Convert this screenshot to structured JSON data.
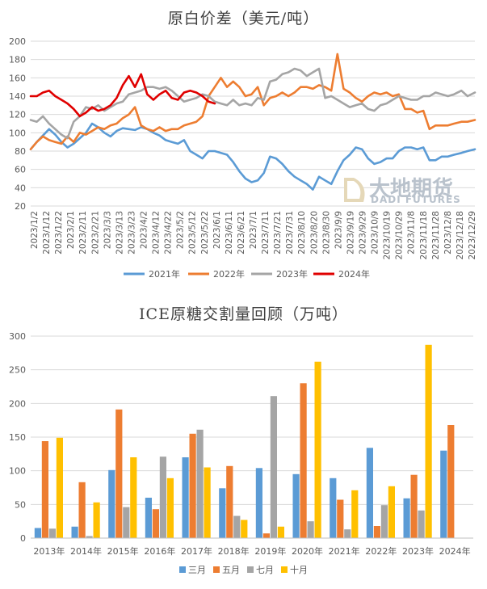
{
  "chart_data": [
    {
      "type": "line",
      "title": "原白价差（美元/吨）",
      "xlabel": "",
      "ylabel": "",
      "ylim": [
        20,
        200
      ],
      "yticks": [
        20,
        40,
        60,
        80,
        100,
        120,
        140,
        160,
        180,
        200
      ],
      "x_tick_labels": [
        "2023/1/2",
        "2023/1/12",
        "2023/1/22",
        "2023/2/1",
        "2023/2/11",
        "2023/2/21",
        "2023/3/3",
        "2023/3/13",
        "2023/3/23",
        "2023/4/2",
        "2023/4/12",
        "2023/4/22",
        "2023/5/2",
        "2023/5/12",
        "2023/5/22",
        "2023/6/1",
        "2023/6/11",
        "2023/6/21",
        "2023/7/1",
        "2023/7/11",
        "2023/7/21",
        "2023/7/31",
        "2023/8/10",
        "2023/8/20",
        "2023/8/30",
        "2023/9/9",
        "2023/9/19",
        "2023/9/29",
        "2023/10/9",
        "2023/10/19",
        "2023/10/29",
        "2023/11/8",
        "2023/11/18",
        "2023/11/28",
        "2023/12/8",
        "2023/12/18",
        "2023/12/29"
      ],
      "grid": true,
      "legend_position": "bottom",
      "series": [
        {
          "name": "2021年",
          "color": "#5b9bd5",
          "x": [
            0,
            5,
            10,
            15,
            20,
            25,
            30,
            35,
            40,
            45,
            50,
            55,
            60,
            65,
            70,
            75,
            80,
            85,
            90,
            95,
            100,
            105,
            110,
            115,
            120,
            125,
            130,
            135,
            140,
            145,
            150,
            155,
            160,
            165,
            170,
            175,
            180,
            185,
            190,
            195,
            200,
            205,
            210,
            215,
            220,
            225,
            230,
            235,
            240,
            245,
            250,
            255,
            260,
            265,
            270,
            275,
            280,
            285,
            290,
            295,
            300,
            305,
            310,
            315,
            320,
            325,
            330,
            335,
            340,
            345,
            351,
            356,
            362
          ],
          "values": [
            82,
            90,
            97,
            104,
            98,
            90,
            84,
            88,
            94,
            100,
            110,
            106,
            100,
            96,
            102,
            105,
            104,
            103,
            106,
            104,
            100,
            97,
            92,
            90,
            88,
            92,
            80,
            76,
            72,
            80,
            80,
            78,
            76,
            68,
            58,
            50,
            46,
            48,
            56,
            74,
            72,
            66,
            58,
            52,
            48,
            44,
            38,
            52,
            48,
            44,
            58,
            70,
            76,
            84,
            82,
            72,
            66,
            68,
            72,
            72,
            80,
            84,
            84,
            82,
            84,
            70,
            70,
            74,
            74,
            76,
            78,
            80,
            82
          ]
        },
        {
          "name": "2022年",
          "color": "#ed7d31",
          "x": [
            0,
            5,
            10,
            15,
            20,
            25,
            30,
            35,
            40,
            45,
            50,
            55,
            60,
            65,
            70,
            75,
            80,
            85,
            90,
            95,
            100,
            105,
            110,
            115,
            120,
            125,
            130,
            135,
            140,
            145,
            150,
            155,
            160,
            165,
            170,
            175,
            180,
            185,
            190,
            195,
            200,
            205,
            210,
            215,
            220,
            225,
            230,
            235,
            240,
            245,
            250,
            255,
            260,
            265,
            270,
            275,
            280,
            285,
            290,
            295,
            300,
            305,
            310,
            315,
            320,
            325,
            330,
            335,
            340,
            345,
            351,
            356,
            362
          ],
          "values": [
            82,
            90,
            96,
            92,
            90,
            88,
            96,
            90,
            100,
            98,
            102,
            106,
            104,
            108,
            110,
            116,
            120,
            128,
            108,
            104,
            102,
            106,
            102,
            104,
            104,
            108,
            110,
            112,
            118,
            140,
            150,
            160,
            150,
            156,
            150,
            140,
            142,
            150,
            130,
            138,
            140,
            144,
            140,
            144,
            150,
            150,
            148,
            152,
            150,
            146,
            186,
            148,
            144,
            138,
            134,
            140,
            144,
            142,
            144,
            140,
            142,
            126,
            126,
            122,
            124,
            104,
            108,
            108,
            108,
            110,
            112,
            112,
            114
          ]
        },
        {
          "name": "2023年",
          "color": "#a5a5a5",
          "x": [
            0,
            5,
            10,
            15,
            20,
            25,
            30,
            35,
            40,
            45,
            50,
            55,
            60,
            65,
            70,
            75,
            80,
            85,
            90,
            95,
            100,
            105,
            110,
            115,
            120,
            125,
            130,
            135,
            140,
            145,
            150,
            155,
            160,
            165,
            170,
            175,
            180,
            185,
            190,
            195,
            200,
            205,
            210,
            215,
            220,
            225,
            230,
            235,
            240,
            245,
            250,
            255,
            260,
            265,
            270,
            275,
            280,
            285,
            290,
            295,
            300,
            305,
            310,
            315,
            320,
            325,
            330,
            335,
            340,
            345,
            351,
            356,
            362
          ],
          "values": [
            114,
            112,
            118,
            110,
            104,
            98,
            94,
            112,
            118,
            128,
            126,
            130,
            124,
            128,
            132,
            134,
            142,
            144,
            146,
            150,
            150,
            148,
            150,
            146,
            140,
            134,
            136,
            138,
            142,
            140,
            134,
            132,
            130,
            136,
            130,
            132,
            130,
            138,
            136,
            156,
            158,
            164,
            166,
            170,
            168,
            162,
            166,
            170,
            138,
            140,
            136,
            132,
            128,
            130,
            132,
            126,
            124,
            130,
            132,
            136,
            140,
            138,
            136,
            136,
            140,
            140,
            144,
            142,
            140,
            142,
            146,
            140,
            144
          ]
        },
        {
          "name": "2024年",
          "color": "#e00000",
          "x": [
            0,
            5,
            10,
            15,
            20,
            25,
            30,
            35,
            40,
            45,
            50,
            55,
            60,
            65,
            70,
            75,
            80,
            85,
            90,
            95,
            100,
            105,
            110,
            115,
            120,
            125,
            130,
            135,
            140,
            145,
            150
          ],
          "values": [
            140,
            140,
            144,
            146,
            140,
            136,
            132,
            126,
            118,
            122,
            128,
            124,
            126,
            130,
            138,
            152,
            162,
            150,
            164,
            142,
            136,
            142,
            146,
            138,
            136,
            144,
            146,
            144,
            140,
            134,
            132
          ]
        }
      ]
    },
    {
      "type": "bar",
      "title": "ICE原糖交割量回顾（万吨）",
      "xlabel": "",
      "ylabel": "",
      "ylim": [
        0,
        300
      ],
      "yticks": [
        0,
        50,
        100,
        150,
        200,
        250,
        300
      ],
      "categories": [
        "2013年",
        "2014年",
        "2015年",
        "2016年",
        "2017年",
        "2018年",
        "2019年",
        "2020年",
        "2021年",
        "2022年",
        "2023年",
        "2024年"
      ],
      "grid": true,
      "legend_position": "bottom",
      "series": [
        {
          "name": "三月",
          "color": "#5b9bd5",
          "values": [
            15,
            17,
            101,
            60,
            120,
            74,
            104,
            95,
            89,
            134,
            59,
            130
          ]
        },
        {
          "name": "五月",
          "color": "#ed7d31",
          "values": [
            144,
            83,
            191,
            43,
            155,
            107,
            7,
            230,
            57,
            18,
            94,
            168
          ]
        },
        {
          "name": "七月",
          "color": "#a5a5a5",
          "values": [
            14,
            3,
            46,
            121,
            161,
            33,
            211,
            25,
            13,
            49,
            41,
            0
          ]
        },
        {
          "name": "十月",
          "color": "#ffc000",
          "values": [
            149,
            53,
            120,
            89,
            105,
            27,
            17,
            262,
            71,
            77,
            287,
            0
          ]
        }
      ]
    }
  ],
  "watermark": {
    "brand_cn": "大地期货",
    "brand_en": "DADI FUTURES"
  }
}
